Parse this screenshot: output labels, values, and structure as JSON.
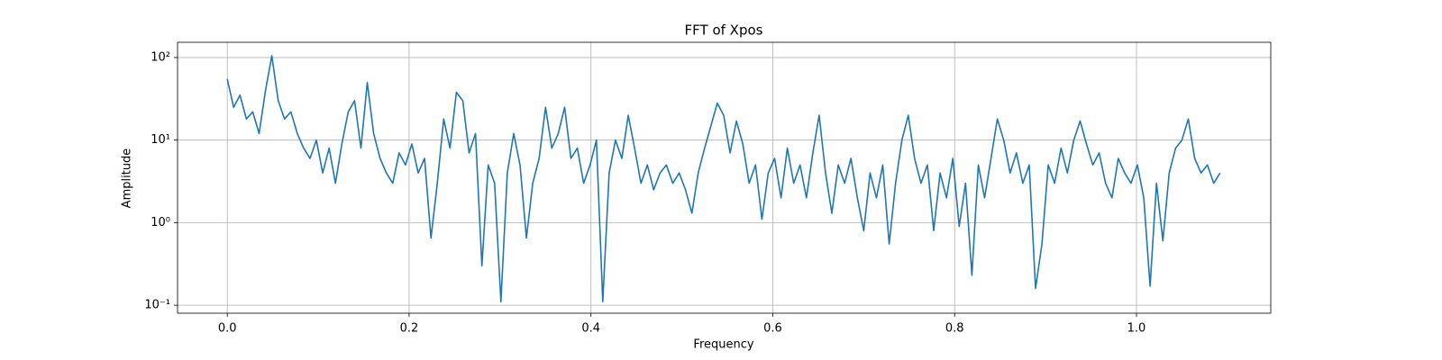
{
  "chart_data": {
    "type": "line",
    "title": "FFT of Xpos",
    "xlabel": "Frequency",
    "ylabel": "Amplitude",
    "yscale": "log",
    "grid": true,
    "color": "#1f77b4",
    "xlim": [
      -0.0547,
      1.1477
    ],
    "ylim": [
      0.08,
      153
    ],
    "xticks": [
      {
        "value": 0,
        "label": "0.0"
      },
      0.2,
      0.4,
      0.6,
      0.8,
      {
        "value": 1,
        "label": "1.0"
      }
    ],
    "yticks": [
      {
        "value": 0.1,
        "label": "10⁻¹"
      },
      {
        "value": 1,
        "label": "10⁰"
      },
      {
        "value": 10,
        "label": "10¹"
      },
      {
        "value": 100,
        "label": "10²"
      }
    ],
    "x": [
      0,
      0.007,
      0.014,
      0.021,
      0.028,
      0.035,
      0.042,
      0.049,
      0.056,
      0.063,
      0.07,
      0.077,
      0.084,
      0.091,
      0.098,
      0.105,
      0.112,
      0.119,
      0.126,
      0.133,
      0.14,
      0.147,
      0.154,
      0.161,
      0.168,
      0.175,
      0.182,
      0.189,
      0.196,
      0.203,
      0.21,
      0.217,
      0.224,
      0.231,
      0.238,
      0.245,
      0.252,
      0.259,
      0.266,
      0.273,
      0.28,
      0.287,
      0.294,
      0.301,
      0.308,
      0.315,
      0.322,
      0.329,
      0.336,
      0.343,
      0.35,
      0.357,
      0.364,
      0.371,
      0.378,
      0.385,
      0.392,
      0.399,
      0.406,
      0.413,
      0.42,
      0.427,
      0.434,
      0.441,
      0.448,
      0.455,
      0.462,
      0.469,
      0.476,
      0.483,
      0.49,
      0.497,
      0.504,
      0.511,
      0.518,
      0.525,
      0.532,
      0.539,
      0.546,
      0.553,
      0.56,
      0.567,
      0.574,
      0.581,
      0.588,
      0.595,
      0.602,
      0.609,
      0.616,
      0.623,
      0.63,
      0.637,
      0.644,
      0.651,
      0.658,
      0.665,
      0.672,
      0.679,
      0.686,
      0.693,
      0.7,
      0.707,
      0.714,
      0.721,
      0.728,
      0.735,
      0.742,
      0.749,
      0.756,
      0.763,
      0.77,
      0.777,
      0.784,
      0.791,
      0.798,
      0.805,
      0.812,
      0.819,
      0.826,
      0.833,
      0.84,
      0.847,
      0.854,
      0.861,
      0.868,
      0.875,
      0.882,
      0.889,
      0.896,
      0.903,
      0.91,
      0.917,
      0.924,
      0.931,
      0.938,
      0.945,
      0.952,
      0.959,
      0.966,
      0.973,
      0.98,
      0.987,
      0.994,
      1.001,
      1.008,
      1.015,
      1.022,
      1.029,
      1.036,
      1.043,
      1.05,
      1.057,
      1.064,
      1.071,
      1.078,
      1.085,
      1.092
    ],
    "values": [
      55,
      25,
      35,
      18,
      22,
      12,
      40,
      105,
      30,
      18,
      22,
      12,
      8,
      6,
      10,
      4,
      8,
      3,
      9,
      22,
      30,
      8,
      50,
      12,
      6,
      4,
      3,
      7,
      5,
      9,
      4,
      6,
      0.65,
      3,
      18,
      8,
      38,
      30,
      7,
      12,
      0.3,
      5,
      3,
      0.11,
      4,
      12,
      5,
      0.65,
      3,
      6,
      25,
      8,
      12,
      25,
      6,
      8,
      3,
      5,
      10,
      0.11,
      4,
      10,
      6,
      20,
      8,
      3,
      5,
      2.5,
      4,
      5,
      3,
      4,
      2.5,
      1.3,
      4,
      8,
      15,
      28,
      20,
      7,
      17,
      9,
      3,
      5,
      1.1,
      4,
      6,
      2,
      8,
      3,
      5,
      2,
      7,
      20,
      4,
      1.3,
      5,
      3,
      6,
      2,
      0.8,
      4,
      2,
      5,
      0.55,
      3,
      10,
      20,
      6,
      3,
      5,
      0.8,
      4,
      2,
      6,
      0.9,
      3,
      0.23,
      5,
      2,
      6,
      18,
      10,
      4,
      7,
      3,
      5,
      0.16,
      0.55,
      5,
      3,
      8,
      4,
      10,
      17,
      9,
      5,
      7,
      3,
      2,
      6,
      4,
      3,
      5,
      2,
      0.17,
      3,
      0.6,
      4,
      8,
      10,
      18,
      6,
      4,
      5,
      3,
      4
    ]
  }
}
